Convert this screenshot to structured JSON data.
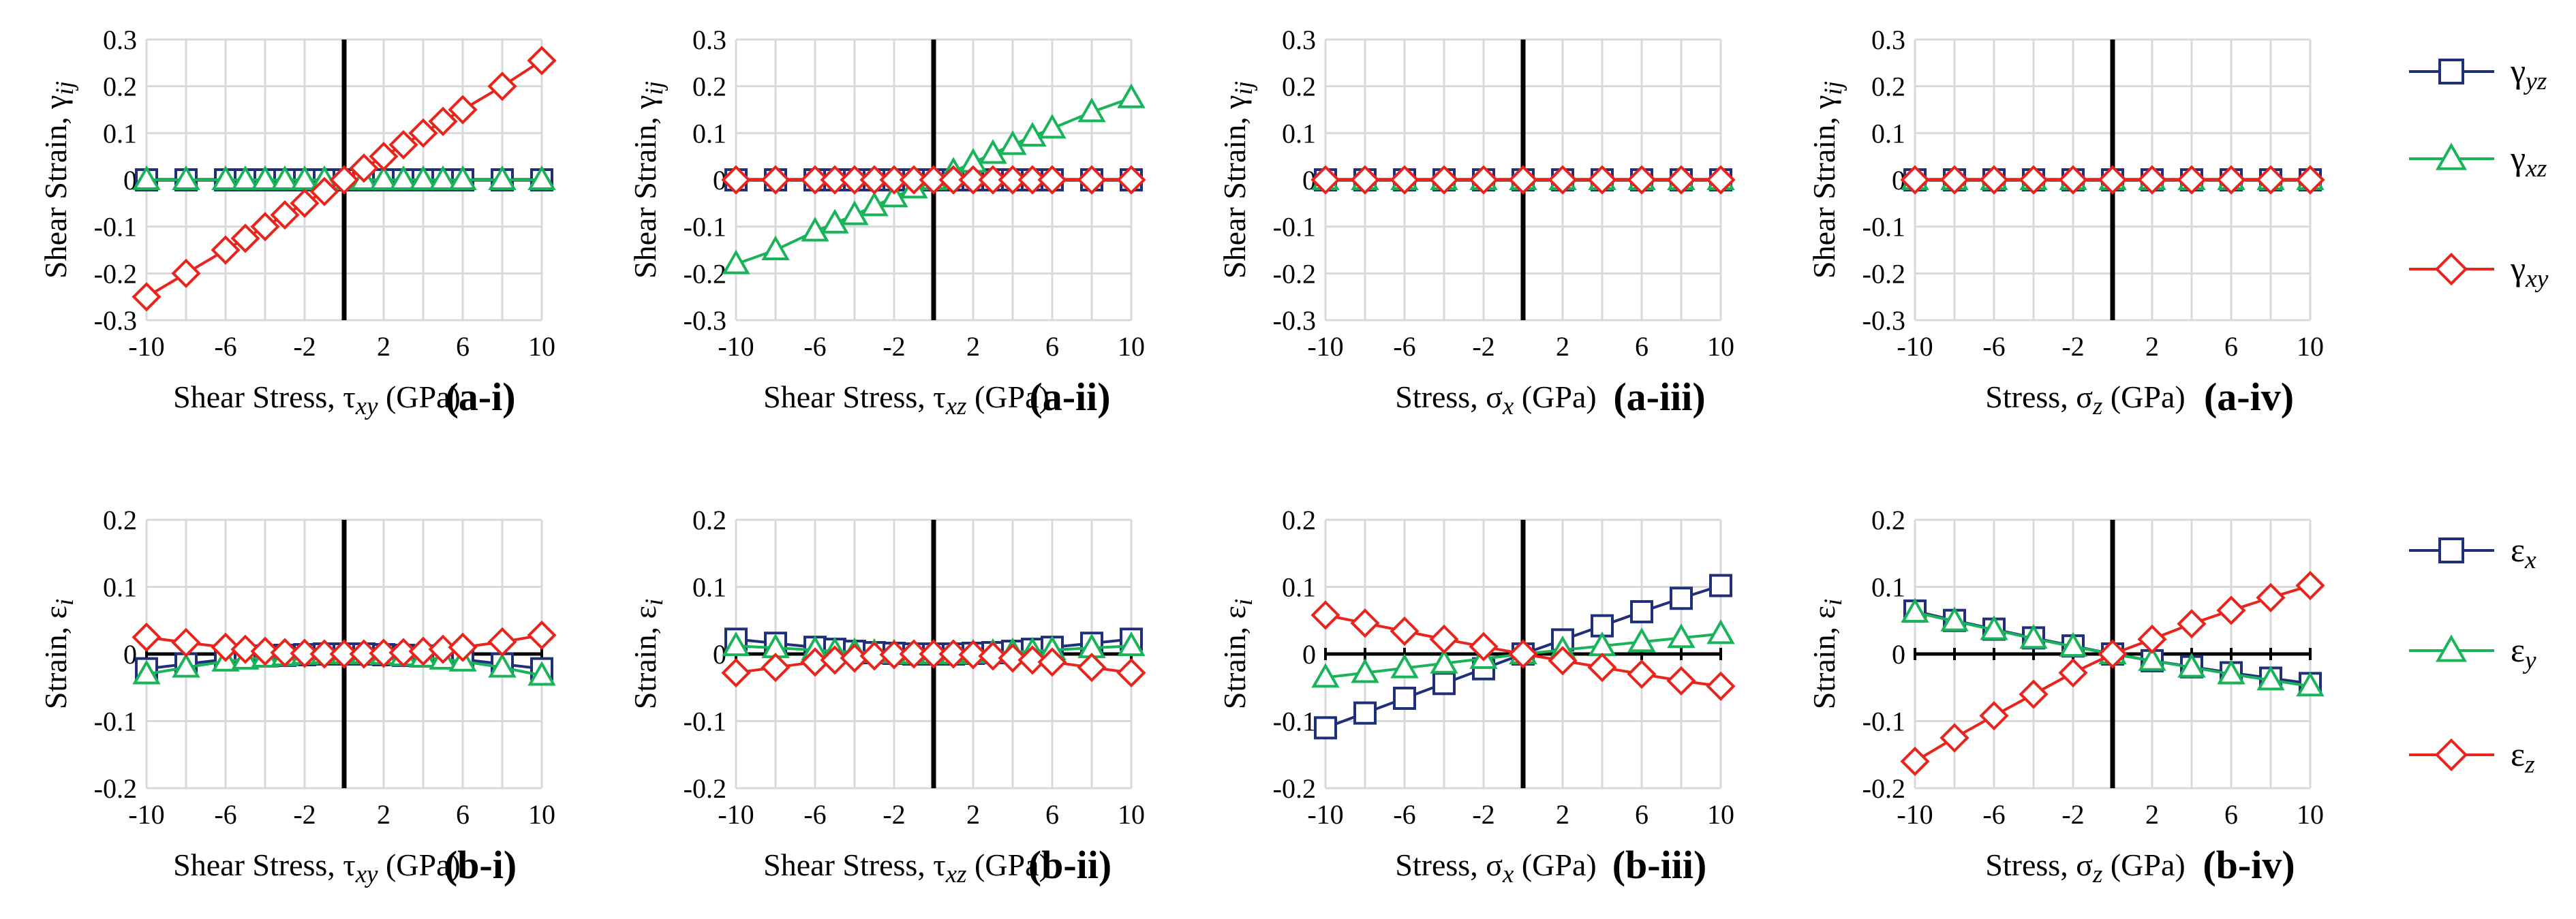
{
  "colors": {
    "yz": "#1f2f7a",
    "xz": "#19b35a",
    "xy": "#e8241c",
    "grid": "#d9d9d9"
  },
  "marker_shapes": [
    "square",
    "triangle",
    "diamond"
  ],
  "legend_top": [
    "γyz",
    "γxz",
    "γxy"
  ],
  "legend_bottom": [
    "εx",
    "εy",
    "εz"
  ],
  "chart_data": [
    {
      "type": "line",
      "panel": "(a-i)",
      "ylabel": "Shear Strain, γij",
      "xlabel": "Shear Stress, τxy (GPa)",
      "xticks": [
        "-10",
        "-6",
        "-2",
        "2",
        "6",
        "10"
      ],
      "yticks": [
        "0.3",
        "0.2",
        "0.1",
        "0",
        "-0.1",
        "-0.2",
        "-0.3"
      ],
      "xlim": [
        -10,
        10
      ],
      "ylim": [
        -0.3,
        0.3
      ],
      "grid": true,
      "x": [
        -10,
        -8,
        -6,
        -5,
        -4,
        -3,
        -2,
        -1,
        0,
        1,
        2,
        3,
        4,
        5,
        6,
        8,
        10
      ],
      "series": [
        {
          "name": "γyz",
          "marker": "square",
          "values": [
            0,
            0,
            0,
            0,
            0,
            0,
            0,
            0,
            0,
            0,
            0,
            0,
            0,
            0,
            0,
            0,
            0
          ]
        },
        {
          "name": "γxz",
          "marker": "triangle",
          "values": [
            0,
            0,
            0,
            0,
            0,
            0,
            0,
            0,
            0,
            0,
            0,
            0,
            0,
            0,
            0,
            0,
            0
          ]
        },
        {
          "name": "γxy",
          "marker": "diamond",
          "values": [
            -0.25,
            -0.2,
            -0.15,
            -0.125,
            -0.1,
            -0.075,
            -0.05,
            -0.025,
            0,
            0.025,
            0.05,
            0.075,
            0.1,
            0.125,
            0.15,
            0.2,
            0.255
          ]
        }
      ]
    },
    {
      "type": "line",
      "panel": "(a-ii)",
      "ylabel": "Shear Strain, γij",
      "xlabel": "Shear Stress, τxz (GPa)",
      "xticks": [
        "-10",
        "-6",
        "-2",
        "2",
        "6",
        "10"
      ],
      "yticks": [
        "0.3",
        "0.2",
        "0.1",
        "0",
        "-0.1",
        "-0.2",
        "-0.3"
      ],
      "xlim": [
        -10,
        10
      ],
      "ylim": [
        -0.3,
        0.3
      ],
      "grid": true,
      "x": [
        -10,
        -8,
        -6,
        -5,
        -4,
        -3,
        -2,
        -1,
        0,
        1,
        2,
        3,
        4,
        5,
        6,
        8,
        10
      ],
      "series": [
        {
          "name": "γyz",
          "marker": "square",
          "values": [
            0,
            0,
            0,
            0,
            0,
            0,
            0,
            0,
            0,
            0,
            0,
            0,
            0,
            0,
            0,
            0,
            0
          ]
        },
        {
          "name": "γxz",
          "marker": "triangle",
          "values": [
            -0.18,
            -0.15,
            -0.11,
            -0.093,
            -0.075,
            -0.056,
            -0.037,
            -0.018,
            0,
            0.018,
            0.037,
            0.056,
            0.075,
            0.093,
            0.11,
            0.145,
            0.175
          ]
        },
        {
          "name": "γxy",
          "marker": "diamond",
          "values": [
            0,
            0,
            0,
            0,
            0,
            0,
            0,
            0,
            0,
            0,
            0,
            0,
            0,
            0,
            0,
            0,
            0
          ]
        }
      ]
    },
    {
      "type": "line",
      "panel": "(a-iii)",
      "ylabel": "Shear Strain, γij",
      "xlabel": "Stress, σx (GPa)",
      "xticks": [
        "-10",
        "-6",
        "-2",
        "2",
        "6",
        "10"
      ],
      "yticks": [
        "0.3",
        "0.2",
        "0.1",
        "0",
        "-0.1",
        "-0.2",
        "-0.3"
      ],
      "xlim": [
        -10,
        10
      ],
      "ylim": [
        -0.3,
        0.3
      ],
      "grid": true,
      "x": [
        -10,
        -8,
        -6,
        -4,
        -2,
        0,
        2,
        4,
        6,
        8,
        10
      ],
      "series": [
        {
          "name": "γyz",
          "marker": "square",
          "values": [
            0,
            0,
            0,
            0,
            0,
            0,
            0,
            0,
            0,
            0,
            0
          ]
        },
        {
          "name": "γxz",
          "marker": "triangle",
          "values": [
            0,
            0,
            0,
            0,
            0,
            0,
            0,
            0,
            0,
            0,
            0
          ]
        },
        {
          "name": "γxy",
          "marker": "diamond",
          "values": [
            0,
            0,
            0,
            0,
            0,
            0,
            0,
            0,
            0,
            0,
            0
          ]
        }
      ]
    },
    {
      "type": "line",
      "panel": "(a-iv)",
      "ylabel": "Shear Strain, γij",
      "xlabel": "Stress, σz (GPa)",
      "xticks": [
        "-10",
        "-6",
        "-2",
        "2",
        "6",
        "10"
      ],
      "yticks": [
        "0.3",
        "0.2",
        "0.1",
        "0",
        "-0.1",
        "-0.2",
        "-0.3"
      ],
      "xlim": [
        -10,
        10
      ],
      "ylim": [
        -0.3,
        0.3
      ],
      "grid": true,
      "x": [
        -10,
        -8,
        -6,
        -4,
        -2,
        0,
        2,
        4,
        6,
        8,
        10
      ],
      "series": [
        {
          "name": "γyz",
          "marker": "square",
          "values": [
            0,
            0,
            0,
            0,
            0,
            0,
            0,
            0,
            0,
            0,
            0
          ]
        },
        {
          "name": "γxz",
          "marker": "triangle",
          "values": [
            0,
            0,
            0,
            0,
            0,
            0,
            0,
            0,
            0,
            0,
            0
          ]
        },
        {
          "name": "γxy",
          "marker": "diamond",
          "values": [
            0,
            0,
            0,
            0,
            0,
            0,
            0,
            0,
            0,
            0,
            0
          ]
        }
      ]
    },
    {
      "type": "line",
      "panel": "(b-i)",
      "ylabel": "Strain, εi",
      "xlabel": "Shear Stress, τxy (GPa)",
      "xticks": [
        "-10",
        "-6",
        "-2",
        "2",
        "6",
        "10"
      ],
      "yticks": [
        "0.2",
        "0.1",
        "0",
        "-0.1",
        "-0.2"
      ],
      "xlim": [
        -10,
        10
      ],
      "ylim": [
        -0.2,
        0.2
      ],
      "grid": true,
      "x": [
        -10,
        -8,
        -6,
        -5,
        -4,
        -3,
        -2,
        -1,
        0,
        1,
        2,
        3,
        4,
        5,
        6,
        8,
        10
      ],
      "series": [
        {
          "name": "εx",
          "marker": "square",
          "values": [
            -0.022,
            -0.015,
            -0.008,
            -0.005,
            -0.003,
            -0.002,
            -0.001,
            0,
            0,
            0,
            -0.001,
            -0.002,
            -0.003,
            -0.005,
            -0.008,
            -0.015,
            -0.022
          ]
        },
        {
          "name": "εy",
          "marker": "triangle",
          "values": [
            -0.03,
            -0.02,
            -0.011,
            -0.008,
            -0.005,
            -0.003,
            -0.001,
            0,
            0,
            0,
            -0.001,
            -0.003,
            -0.005,
            -0.008,
            -0.011,
            -0.02,
            -0.032
          ]
        },
        {
          "name": "εz",
          "marker": "diamond",
          "values": [
            0.025,
            0.017,
            0.01,
            0.007,
            0.004,
            0.002,
            0.001,
            0,
            0,
            0,
            0.001,
            0.002,
            0.004,
            0.007,
            0.01,
            0.018,
            0.028
          ]
        }
      ]
    },
    {
      "type": "line",
      "panel": "(b-ii)",
      "ylabel": "Strain, εi",
      "xlabel": "Shear Stress, τxz (GPa)",
      "xticks": [
        "-10",
        "-6",
        "-2",
        "2",
        "6",
        "10"
      ],
      "yticks": [
        "0.2",
        "0.1",
        "0",
        "-0.1",
        "-0.2"
      ],
      "xlim": [
        -10,
        10
      ],
      "ylim": [
        -0.2,
        0.2
      ],
      "grid": true,
      "x": [
        -10,
        -8,
        -6,
        -5,
        -4,
        -3,
        -2,
        -1,
        0,
        1,
        2,
        3,
        4,
        5,
        6,
        8,
        10
      ],
      "series": [
        {
          "name": "εx",
          "marker": "square",
          "values": [
            0.022,
            0.016,
            0.01,
            0.007,
            0.004,
            0.002,
            0.001,
            0,
            0,
            0,
            0.001,
            0.002,
            0.004,
            0.007,
            0.01,
            0.016,
            0.022
          ]
        },
        {
          "name": "εy",
          "marker": "triangle",
          "values": [
            0.012,
            0.009,
            0.006,
            0.004,
            0.003,
            0.002,
            0.001,
            0,
            0,
            0,
            0.001,
            0.002,
            0.003,
            0.004,
            0.006,
            0.009,
            0.012
          ]
        },
        {
          "name": "εz",
          "marker": "diamond",
          "values": [
            -0.028,
            -0.02,
            -0.012,
            -0.009,
            -0.006,
            -0.003,
            -0.001,
            0,
            0,
            0,
            -0.001,
            -0.003,
            -0.006,
            -0.009,
            -0.012,
            -0.02,
            -0.028
          ]
        }
      ]
    },
    {
      "type": "line",
      "panel": "(b-iii)",
      "ylabel": "Strain, εi",
      "xlabel": "Stress, σx (GPa)",
      "xticks": [
        "-10",
        "-6",
        "-2",
        "2",
        "6",
        "10"
      ],
      "yticks": [
        "0.2",
        "0.1",
        "0",
        "-0.1",
        "-0.2"
      ],
      "xlim": [
        -10,
        10
      ],
      "ylim": [
        -0.2,
        0.2
      ],
      "grid": true,
      "x": [
        -10,
        -8,
        -6,
        -4,
        -2,
        0,
        2,
        4,
        6,
        8,
        10
      ],
      "series": [
        {
          "name": "εx",
          "marker": "square",
          "values": [
            -0.11,
            -0.088,
            -0.066,
            -0.044,
            -0.022,
            0,
            0.021,
            0.042,
            0.063,
            0.083,
            0.102
          ]
        },
        {
          "name": "εy",
          "marker": "triangle",
          "values": [
            -0.035,
            -0.028,
            -0.021,
            -0.014,
            -0.007,
            0,
            0.006,
            0.012,
            0.018,
            0.024,
            0.03
          ]
        },
        {
          "name": "εz",
          "marker": "diamond",
          "values": [
            0.058,
            0.046,
            0.034,
            0.022,
            0.011,
            0,
            -0.01,
            -0.02,
            -0.03,
            -0.04,
            -0.048
          ]
        }
      ]
    },
    {
      "type": "line",
      "panel": "(b-iv)",
      "ylabel": "Strain, εi",
      "xlabel": "Stress, σz (GPa)",
      "xticks": [
        "-10",
        "-6",
        "-2",
        "2",
        "6",
        "10"
      ],
      "yticks": [
        "0.2",
        "0.1",
        "0",
        "-0.1",
        "-0.2"
      ],
      "xlim": [
        -10,
        10
      ],
      "ylim": [
        -0.2,
        0.2
      ],
      "grid": true,
      "x": [
        -10,
        -8,
        -6,
        -4,
        -2,
        0,
        2,
        4,
        6,
        8,
        10
      ],
      "series": [
        {
          "name": "εx",
          "marker": "square",
          "values": [
            0.064,
            0.05,
            0.037,
            0.024,
            0.012,
            0,
            -0.01,
            -0.019,
            -0.028,
            -0.036,
            -0.044
          ]
        },
        {
          "name": "εy",
          "marker": "triangle",
          "values": [
            0.062,
            0.049,
            0.036,
            0.023,
            0.011,
            0,
            -0.01,
            -0.02,
            -0.03,
            -0.039,
            -0.048
          ]
        },
        {
          "name": "εz",
          "marker": "diamond",
          "values": [
            -0.16,
            -0.125,
            -0.092,
            -0.06,
            -0.028,
            0,
            0.022,
            0.045,
            0.065,
            0.084,
            0.102
          ]
        }
      ]
    }
  ]
}
